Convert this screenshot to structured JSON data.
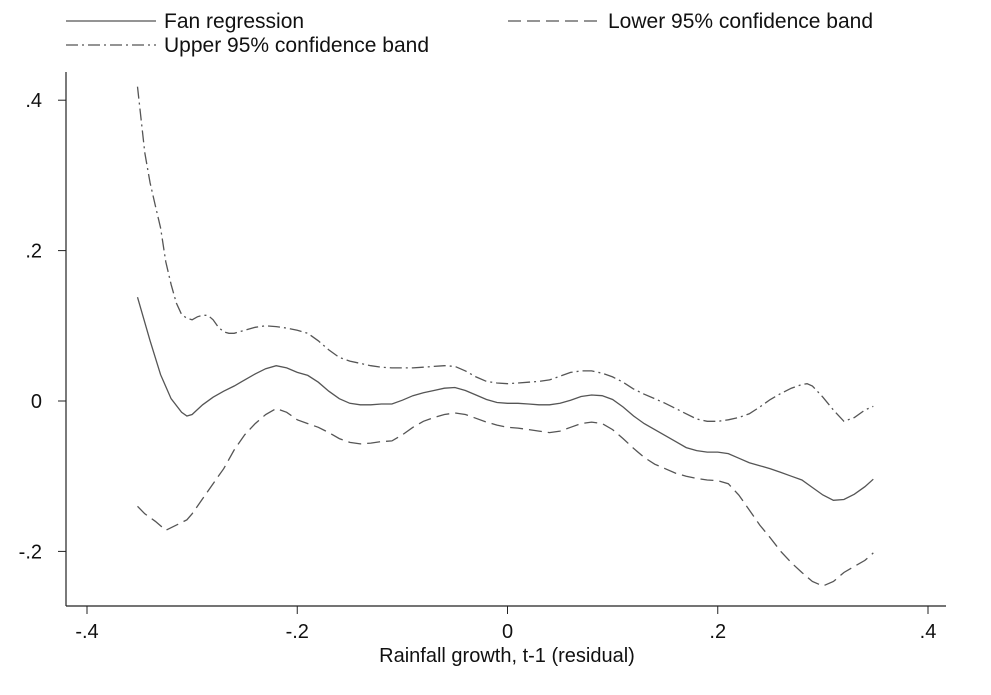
{
  "chart_data": {
    "type": "line",
    "title": "",
    "xlabel": "Rainfall growth, t-1 (residual)",
    "ylabel": "",
    "xlim": [
      -0.4,
      0.4
    ],
    "ylim": [
      -0.27,
      0.43
    ],
    "x_ticks": [
      -0.4,
      -0.2,
      0,
      0.2,
      0.4
    ],
    "x_tick_labels": [
      "-.4",
      "-.2",
      "0",
      ".2",
      ".4"
    ],
    "y_ticks": [
      -0.2,
      0,
      0.2,
      0.4
    ],
    "y_tick_labels": [
      "-.2",
      "0",
      ".2",
      ".4"
    ],
    "grid": false,
    "legend_position": "top",
    "series": [
      {
        "name": "Fan regression",
        "style": "solid",
        "color": "#555555",
        "x": [
          -0.352,
          -0.34,
          -0.33,
          -0.32,
          -0.31,
          -0.305,
          -0.3,
          -0.29,
          -0.28,
          -0.27,
          -0.26,
          -0.25,
          -0.24,
          -0.23,
          -0.22,
          -0.21,
          -0.2,
          -0.19,
          -0.18,
          -0.17,
          -0.16,
          -0.15,
          -0.14,
          -0.13,
          -0.12,
          -0.11,
          -0.1,
          -0.09,
          -0.08,
          -0.07,
          -0.06,
          -0.05,
          -0.04,
          -0.03,
          -0.02,
          -0.01,
          0,
          0.01,
          0.02,
          0.03,
          0.04,
          0.05,
          0.06,
          0.07,
          0.08,
          0.09,
          0.1,
          0.11,
          0.12,
          0.13,
          0.14,
          0.15,
          0.16,
          0.17,
          0.18,
          0.19,
          0.2,
          0.21,
          0.22,
          0.23,
          0.24,
          0.25,
          0.26,
          0.27,
          0.28,
          0.29,
          0.3,
          0.31,
          0.32,
          0.33,
          0.34,
          0.348
        ],
        "y": [
          0.138,
          0.08,
          0.035,
          0.003,
          -0.015,
          -0.02,
          -0.018,
          -0.005,
          0.005,
          0.013,
          0.02,
          0.028,
          0.036,
          0.043,
          0.047,
          0.044,
          0.038,
          0.034,
          0.025,
          0.013,
          0.003,
          -0.003,
          -0.005,
          -0.005,
          -0.004,
          -0.004,
          0.001,
          0.007,
          0.011,
          0.014,
          0.017,
          0.018,
          0.014,
          0.008,
          0.002,
          -0.002,
          -0.003,
          -0.003,
          -0.004,
          -0.005,
          -0.005,
          -0.003,
          0.001,
          0.006,
          0.008,
          0.007,
          0.002,
          -0.008,
          -0.02,
          -0.03,
          -0.038,
          -0.046,
          -0.054,
          -0.062,
          -0.066,
          -0.068,
          -0.068,
          -0.07,
          -0.076,
          -0.082,
          -0.086,
          -0.09,
          -0.095,
          -0.1,
          -0.105,
          -0.115,
          -0.125,
          -0.132,
          -0.131,
          -0.124,
          -0.114,
          -0.104
        ]
      },
      {
        "name": "Lower 95% confidence band",
        "style": "dashed",
        "color": "#555555",
        "x": [
          -0.352,
          -0.345,
          -0.335,
          -0.325,
          -0.315,
          -0.305,
          -0.3,
          -0.29,
          -0.28,
          -0.27,
          -0.26,
          -0.25,
          -0.24,
          -0.23,
          -0.22,
          -0.21,
          -0.2,
          -0.19,
          -0.18,
          -0.17,
          -0.16,
          -0.15,
          -0.14,
          -0.13,
          -0.12,
          -0.11,
          -0.1,
          -0.09,
          -0.08,
          -0.07,
          -0.06,
          -0.05,
          -0.04,
          -0.03,
          -0.02,
          -0.01,
          0,
          0.01,
          0.02,
          0.03,
          0.04,
          0.05,
          0.06,
          0.07,
          0.08,
          0.09,
          0.1,
          0.11,
          0.12,
          0.13,
          0.14,
          0.15,
          0.16,
          0.17,
          0.18,
          0.19,
          0.2,
          0.21,
          0.22,
          0.23,
          0.24,
          0.25,
          0.26,
          0.27,
          0.28,
          0.29,
          0.3,
          0.31,
          0.32,
          0.33,
          0.34,
          0.348
        ],
        "y": [
          -0.14,
          -0.15,
          -0.16,
          -0.172,
          -0.165,
          -0.158,
          -0.15,
          -0.13,
          -0.11,
          -0.09,
          -0.065,
          -0.045,
          -0.03,
          -0.018,
          -0.01,
          -0.015,
          -0.025,
          -0.03,
          -0.035,
          -0.042,
          -0.05,
          -0.055,
          -0.057,
          -0.056,
          -0.054,
          -0.053,
          -0.045,
          -0.035,
          -0.027,
          -0.022,
          -0.018,
          -0.016,
          -0.018,
          -0.023,
          -0.028,
          -0.032,
          -0.035,
          -0.036,
          -0.038,
          -0.04,
          -0.042,
          -0.04,
          -0.035,
          -0.03,
          -0.028,
          -0.03,
          -0.038,
          -0.05,
          -0.063,
          -0.075,
          -0.084,
          -0.09,
          -0.096,
          -0.1,
          -0.103,
          -0.105,
          -0.106,
          -0.11,
          -0.125,
          -0.145,
          -0.165,
          -0.182,
          -0.2,
          -0.215,
          -0.228,
          -0.24,
          -0.246,
          -0.24,
          -0.228,
          -0.22,
          -0.212,
          -0.202
        ]
      },
      {
        "name": "Upper 95% confidence band",
        "style": "dash-dot",
        "color": "#555555",
        "x": [
          -0.352,
          -0.345,
          -0.34,
          -0.335,
          -0.33,
          -0.325,
          -0.32,
          -0.315,
          -0.31,
          -0.305,
          -0.3,
          -0.295,
          -0.29,
          -0.285,
          -0.28,
          -0.275,
          -0.27,
          -0.265,
          -0.26,
          -0.25,
          -0.24,
          -0.23,
          -0.22,
          -0.21,
          -0.2,
          -0.19,
          -0.18,
          -0.17,
          -0.16,
          -0.15,
          -0.14,
          -0.13,
          -0.12,
          -0.11,
          -0.1,
          -0.09,
          -0.08,
          -0.07,
          -0.06,
          -0.05,
          -0.04,
          -0.03,
          -0.02,
          -0.01,
          0,
          0.01,
          0.02,
          0.03,
          0.04,
          0.05,
          0.06,
          0.07,
          0.08,
          0.09,
          0.1,
          0.11,
          0.12,
          0.13,
          0.14,
          0.15,
          0.16,
          0.17,
          0.18,
          0.19,
          0.2,
          0.21,
          0.22,
          0.23,
          0.24,
          0.25,
          0.26,
          0.27,
          0.28,
          0.285,
          0.29,
          0.3,
          0.31,
          0.32,
          0.33,
          0.34,
          0.348
        ],
        "y": [
          0.418,
          0.33,
          0.29,
          0.26,
          0.23,
          0.185,
          0.155,
          0.13,
          0.115,
          0.11,
          0.108,
          0.112,
          0.114,
          0.114,
          0.108,
          0.098,
          0.092,
          0.09,
          0.09,
          0.094,
          0.098,
          0.1,
          0.099,
          0.097,
          0.094,
          0.09,
          0.08,
          0.068,
          0.058,
          0.053,
          0.05,
          0.047,
          0.045,
          0.044,
          0.044,
          0.044,
          0.045,
          0.046,
          0.047,
          0.046,
          0.04,
          0.032,
          0.026,
          0.024,
          0.023,
          0.024,
          0.025,
          0.026,
          0.028,
          0.033,
          0.038,
          0.04,
          0.04,
          0.037,
          0.032,
          0.025,
          0.016,
          0.009,
          0.003,
          -0.003,
          -0.01,
          -0.017,
          -0.024,
          -0.027,
          -0.027,
          -0.025,
          -0.022,
          -0.017,
          -0.008,
          0.002,
          0.01,
          0.017,
          0.022,
          0.023,
          0.02,
          0.005,
          -0.012,
          -0.027,
          -0.022,
          -0.012,
          -0.007
        ]
      }
    ]
  }
}
